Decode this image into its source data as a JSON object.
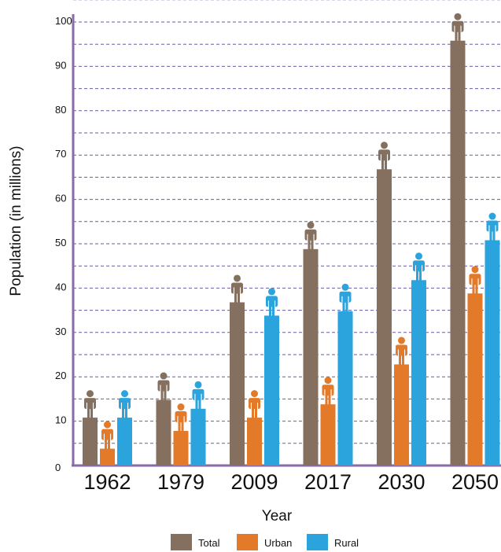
{
  "chart_data": {
    "type": "bar",
    "title": "",
    "xlabel": "Year",
    "ylabel": "Population (in millions)",
    "categories": [
      "1962",
      "1979",
      "2009",
      "2017",
      "2030",
      "2050"
    ],
    "series": [
      {
        "name": "Total",
        "values": [
          17,
          21,
          43,
          55,
          73,
          102
        ],
        "color": "#85705f"
      },
      {
        "name": "Urban",
        "values": [
          10,
          14,
          17,
          20,
          29,
          45
        ],
        "color": "#e27a2a"
      },
      {
        "name": "Rural",
        "values": [
          17,
          19,
          40,
          41,
          48,
          57
        ],
        "color": "#2ba3dc"
      }
    ],
    "ylim": [
      0,
      100
    ],
    "yticks": [
      0,
      10,
      20,
      30,
      40,
      50,
      60,
      70,
      80,
      90,
      100
    ],
    "grid": true,
    "gridline_color": "#6b5aa6",
    "axis_color": "#8a6aa8",
    "legend_position": "bottom-center",
    "icon": "person-icon"
  }
}
